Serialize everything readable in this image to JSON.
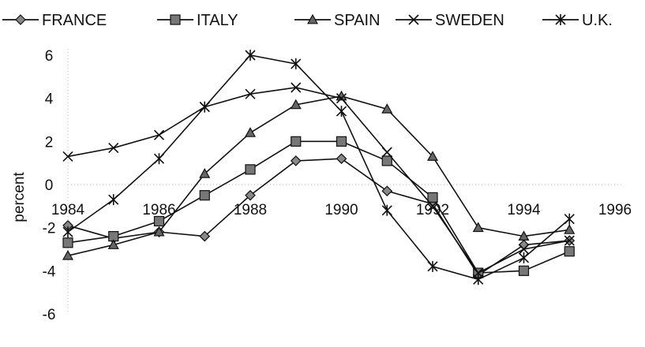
{
  "chart_data": {
    "type": "line",
    "title": "",
    "xlabel": "",
    "ylabel": "percent",
    "x_ticks": [
      1984,
      1986,
      1988,
      1990,
      1992,
      1994,
      1996
    ],
    "y_ticks": [
      6,
      4,
      2,
      0,
      -2,
      -4,
      -6
    ],
    "xlim": [
      1984,
      1996
    ],
    "ylim": [
      -6,
      6
    ],
    "grid": false,
    "legend_position": "top",
    "x": [
      1984,
      1985,
      1986,
      1987,
      1988,
      1989,
      1990,
      1991,
      1992,
      1993,
      1994,
      1995
    ],
    "series": [
      {
        "name": "FRANCE",
        "marker": "diamond",
        "values": [
          -1.9,
          -2.5,
          -2.2,
          -2.4,
          -0.5,
          1.1,
          1.2,
          -0.3,
          -0.9,
          -4.2,
          -2.8,
          -2.6
        ]
      },
      {
        "name": "ITALY",
        "marker": "square",
        "values": [
          -2.7,
          -2.4,
          -1.7,
          -0.5,
          0.7,
          2.0,
          2.0,
          1.1,
          -0.6,
          -4.1,
          -4.0,
          -3.1
        ]
      },
      {
        "name": "SPAIN",
        "marker": "triangle",
        "values": [
          -3.3,
          -2.8,
          -2.2,
          0.5,
          2.4,
          3.7,
          4.1,
          3.5,
          1.3,
          -2.0,
          -2.4,
          -2.1
        ]
      },
      {
        "name": "SWEDEN",
        "marker": "x",
        "values": [
          1.3,
          1.7,
          2.3,
          3.6,
          4.2,
          4.5,
          4.0,
          1.5,
          -1.0,
          -4.1,
          -3.0,
          -2.6
        ]
      },
      {
        "name": "U.K.",
        "marker": "asterisk",
        "values": [
          -2.2,
          -0.7,
          1.2,
          3.6,
          6.0,
          5.6,
          3.4,
          -1.2,
          -3.8,
          -4.4,
          -3.4,
          -1.6
        ]
      }
    ]
  }
}
